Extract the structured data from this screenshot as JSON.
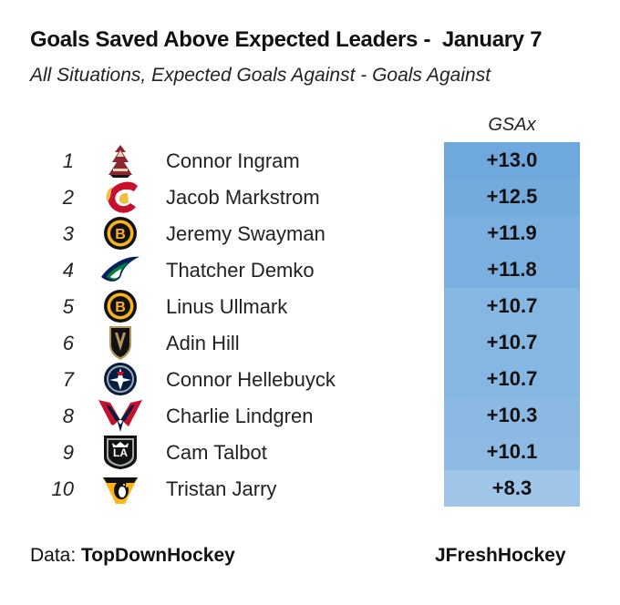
{
  "title": "Goals Saved Above Expected Leaders -  January 7",
  "subtitle": "All Situations, Expected Goals Against - Goals Against",
  "footer": {
    "data_prefix": "Data: ",
    "data_source": "TopDownHockey",
    "credit": "JFreshHockey"
  },
  "colors": {
    "scale_low": "#9fc5e8",
    "scale_high": "#6fa8dc"
  },
  "chart_data": {
    "type": "table",
    "columns": [
      "GSAx"
    ],
    "rows": [
      {
        "rank": "1",
        "team_icon": "coyotes-logo-icon",
        "player": "Connor Ingram",
        "gsax": 13.0,
        "label": "+13.0"
      },
      {
        "rank": "2",
        "team_icon": "flames-logo-icon",
        "player": "Jacob Markstrom",
        "gsax": 12.5,
        "label": "+12.5"
      },
      {
        "rank": "3",
        "team_icon": "bruins-logo-icon",
        "player": "Jeremy Swayman",
        "gsax": 11.9,
        "label": "+11.9"
      },
      {
        "rank": "4",
        "team_icon": "canucks-logo-icon",
        "player": "Thatcher Demko",
        "gsax": 11.8,
        "label": "+11.8"
      },
      {
        "rank": "5",
        "team_icon": "bruins-logo-icon",
        "player": "Linus Ullmark",
        "gsax": 10.7,
        "label": "+10.7"
      },
      {
        "rank": "6",
        "team_icon": "golden-knights-logo-icon",
        "player": "Adin Hill",
        "gsax": 10.7,
        "label": "+10.7"
      },
      {
        "rank": "7",
        "team_icon": "jets-logo-icon",
        "player": "Connor Hellebuyck",
        "gsax": 10.7,
        "label": "+10.7"
      },
      {
        "rank": "8",
        "team_icon": "capitals-logo-icon",
        "player": "Charlie Lindgren",
        "gsax": 10.3,
        "label": "+10.3"
      },
      {
        "rank": "9",
        "team_icon": "kings-logo-icon",
        "player": "Cam Talbot",
        "gsax": 10.1,
        "label": "+10.1"
      },
      {
        "rank": "10",
        "team_icon": "penguins-logo-icon",
        "player": "Tristan Jarry",
        "gsax": 8.3,
        "label": "+8.3"
      }
    ]
  }
}
